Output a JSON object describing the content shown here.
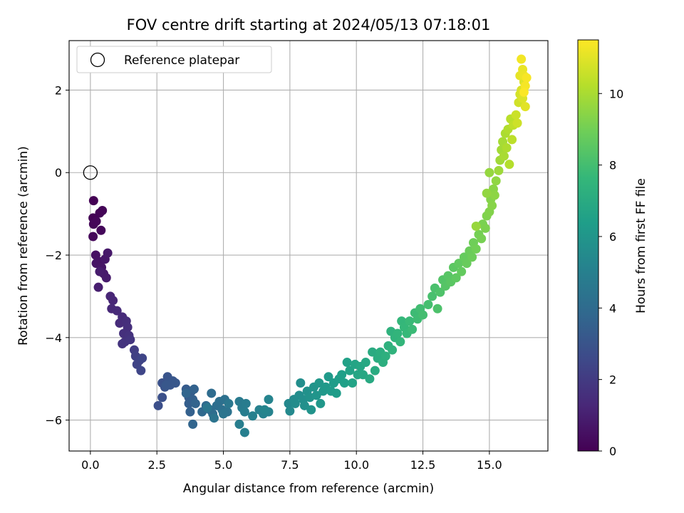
{
  "chart_data": {
    "type": "scatter",
    "title": "FOV centre drift starting at 2024/05/13 07:18:01",
    "xlabel": "Angular distance from reference (arcmin)",
    "ylabel": "Rotation from reference (arcmin)",
    "xlim": [
      -0.8,
      17.2
    ],
    "ylim": [
      -6.75,
      3.2
    ],
    "xticks": [
      0.0,
      2.5,
      5.0,
      7.5,
      10.0,
      12.5,
      15.0
    ],
    "xtick_labels": [
      "0.0",
      "2.5",
      "5.0",
      "7.5",
      "10.0",
      "12.5",
      "15.0"
    ],
    "yticks": [
      -6,
      -4,
      -2,
      0,
      2
    ],
    "ytick_labels": [
      "−6",
      "−4",
      "−2",
      "0",
      "2"
    ],
    "grid": true,
    "legend": {
      "position": "upper-left",
      "entries": [
        "Reference platepar"
      ]
    },
    "reference_point": {
      "x": 0.0,
      "y": 0.0
    },
    "colorbar": {
      "label": "Hours from first FF file",
      "colormap": "viridis",
      "range": [
        0,
        11.5
      ],
      "ticks": [
        0,
        2,
        4,
        6,
        8,
        10
      ],
      "tick_labels": [
        "0",
        "2",
        "4",
        "6",
        "8",
        "10"
      ]
    },
    "colors": [
      "#440154",
      "#482878",
      "#3e4989",
      "#31688e",
      "#26828e",
      "#1f9e89",
      "#35b779",
      "#6ece58",
      "#b5de2b",
      "#fde725"
    ],
    "points": [
      [
        0.12,
        -0.68,
        0.0
      ],
      [
        0.1,
        -1.1,
        0.05
      ],
      [
        0.35,
        -0.98,
        0.1
      ],
      [
        0.45,
        -0.92,
        0.12
      ],
      [
        0.12,
        -1.25,
        0.15
      ],
      [
        0.22,
        -1.18,
        0.17
      ],
      [
        0.4,
        -1.4,
        0.2
      ],
      [
        0.1,
        -1.55,
        0.22
      ],
      [
        0.2,
        -2.0,
        0.5
      ],
      [
        0.3,
        -2.15,
        0.55
      ],
      [
        0.22,
        -2.2,
        0.6
      ],
      [
        0.42,
        -2.3,
        0.65
      ],
      [
        0.55,
        -2.1,
        0.7
      ],
      [
        0.65,
        -1.95,
        0.75
      ],
      [
        0.5,
        -2.45,
        0.8
      ],
      [
        0.6,
        -2.55,
        0.85
      ],
      [
        0.35,
        -2.4,
        0.9
      ],
      [
        0.3,
        -2.78,
        0.95
      ],
      [
        0.75,
        -3.0,
        1.2
      ],
      [
        0.85,
        -3.1,
        1.25
      ],
      [
        0.8,
        -3.3,
        1.3
      ],
      [
        1.0,
        -3.35,
        1.35
      ],
      [
        1.2,
        -3.5,
        1.4
      ],
      [
        1.1,
        -3.65,
        1.45
      ],
      [
        1.35,
        -3.6,
        1.5
      ],
      [
        1.4,
        -3.75,
        1.55
      ],
      [
        1.25,
        -3.9,
        1.6
      ],
      [
        1.45,
        -3.95,
        1.65
      ],
      [
        1.3,
        -4.1,
        1.7
      ],
      [
        1.2,
        -4.15,
        1.75
      ],
      [
        1.5,
        -4.05,
        1.8
      ],
      [
        1.65,
        -4.3,
        2.1
      ],
      [
        1.7,
        -4.45,
        2.2
      ],
      [
        1.85,
        -4.55,
        2.3
      ],
      [
        1.75,
        -4.65,
        2.35
      ],
      [
        1.95,
        -4.5,
        2.4
      ],
      [
        1.9,
        -4.8,
        2.45
      ],
      [
        2.55,
        -5.65,
        2.8
      ],
      [
        2.7,
        -5.45,
        2.85
      ],
      [
        2.7,
        -5.1,
        2.9
      ],
      [
        2.8,
        -5.2,
        2.95
      ],
      [
        2.9,
        -4.95,
        3.0
      ],
      [
        3.0,
        -5.15,
        3.05
      ],
      [
        3.1,
        -5.05,
        3.1
      ],
      [
        3.2,
        -5.1,
        3.12
      ],
      [
        2.85,
        -5.15,
        3.15
      ],
      [
        3.6,
        -5.25,
        3.3
      ],
      [
        3.7,
        -5.45,
        3.35
      ],
      [
        3.8,
        -5.3,
        3.4
      ],
      [
        3.7,
        -5.6,
        3.45
      ],
      [
        3.85,
        -5.5,
        3.5
      ],
      [
        3.75,
        -5.8,
        3.55
      ],
      [
        3.9,
        -5.25,
        3.6
      ],
      [
        3.95,
        -5.6,
        3.65
      ],
      [
        3.85,
        -6.1,
        3.7
      ],
      [
        3.6,
        -5.35,
        3.75
      ],
      [
        4.2,
        -5.8,
        3.9
      ],
      [
        4.35,
        -5.65,
        3.95
      ],
      [
        4.5,
        -5.75,
        4.0
      ],
      [
        4.55,
        -5.35,
        4.05
      ],
      [
        4.6,
        -5.85,
        4.1
      ],
      [
        4.75,
        -5.65,
        4.15
      ],
      [
        4.85,
        -5.55,
        4.2
      ],
      [
        4.95,
        -5.75,
        4.25
      ],
      [
        5.05,
        -5.5,
        4.3
      ],
      [
        5.15,
        -5.8,
        4.35
      ],
      [
        4.65,
        -5.95,
        4.4
      ],
      [
        5.0,
        -5.85,
        4.45
      ],
      [
        4.4,
        -5.7,
        4.5
      ],
      [
        5.2,
        -5.6,
        4.55
      ],
      [
        5.6,
        -5.55,
        4.7
      ],
      [
        5.7,
        -5.7,
        4.75
      ],
      [
        5.85,
        -5.6,
        4.8
      ],
      [
        5.8,
        -5.8,
        4.85
      ],
      [
        5.6,
        -6.1,
        4.9
      ],
      [
        5.8,
        -6.3,
        4.95
      ],
      [
        6.1,
        -5.9,
        5.0
      ],
      [
        6.35,
        -5.75,
        5.05
      ],
      [
        6.5,
        -5.85,
        5.1
      ],
      [
        6.7,
        -5.8,
        5.15
      ],
      [
        6.7,
        -5.5,
        5.2
      ],
      [
        6.55,
        -5.75,
        5.25
      ],
      [
        7.45,
        -5.6,
        5.4
      ],
      [
        7.5,
        -5.78,
        5.45
      ],
      [
        7.65,
        -5.5,
        5.5
      ],
      [
        7.7,
        -5.6,
        5.55
      ],
      [
        7.85,
        -5.4,
        5.6
      ],
      [
        7.9,
        -5.1,
        5.65
      ],
      [
        8.0,
        -5.5,
        5.7
      ],
      [
        8.05,
        -5.65,
        5.75
      ],
      [
        8.15,
        -5.3,
        5.8
      ],
      [
        8.25,
        -5.45,
        5.85
      ],
      [
        8.3,
        -5.75,
        5.9
      ],
      [
        8.4,
        -5.2,
        5.95
      ],
      [
        8.5,
        -5.4,
        6.0
      ],
      [
        8.6,
        -5.1,
        6.05
      ],
      [
        8.65,
        -5.6,
        6.08
      ],
      [
        8.75,
        -5.3,
        6.1
      ],
      [
        8.85,
        -5.2,
        6.15
      ],
      [
        8.95,
        -4.95,
        6.2
      ],
      [
        9.05,
        -5.3,
        6.25
      ],
      [
        9.15,
        -5.1,
        6.3
      ],
      [
        9.25,
        -5.35,
        6.35
      ],
      [
        9.35,
        -5.0,
        6.4
      ],
      [
        9.45,
        -4.9,
        6.45
      ],
      [
        9.55,
        -5.1,
        6.5
      ],
      [
        9.65,
        -4.6,
        6.55
      ],
      [
        9.75,
        -4.8,
        6.6
      ],
      [
        9.85,
        -5.1,
        6.65
      ],
      [
        9.95,
        -4.65,
        6.7
      ],
      [
        10.05,
        -4.9,
        6.75
      ],
      [
        10.15,
        -4.7,
        6.8
      ],
      [
        10.25,
        -4.9,
        6.85
      ],
      [
        10.35,
        -4.6,
        6.9
      ],
      [
        10.5,
        -5.0,
        6.95
      ],
      [
        10.6,
        -4.35,
        7.0
      ],
      [
        10.7,
        -4.8,
        7.05
      ],
      [
        10.8,
        -4.5,
        7.1
      ],
      [
        10.9,
        -4.35,
        7.15
      ],
      [
        11.0,
        -4.6,
        7.2
      ],
      [
        11.1,
        -4.45,
        7.25
      ],
      [
        11.2,
        -4.2,
        7.3
      ],
      [
        11.3,
        -3.85,
        7.35
      ],
      [
        11.35,
        -4.3,
        7.4
      ],
      [
        11.45,
        -4.0,
        7.45
      ],
      [
        11.55,
        -3.9,
        7.5
      ],
      [
        11.65,
        -4.1,
        7.55
      ],
      [
        11.7,
        -3.6,
        7.6
      ],
      [
        11.8,
        -3.75,
        7.65
      ],
      [
        11.9,
        -3.9,
        7.7
      ],
      [
        12.0,
        -3.6,
        7.75
      ],
      [
        12.1,
        -3.8,
        7.8
      ],
      [
        12.2,
        -3.4,
        7.85
      ],
      [
        12.3,
        -3.55,
        7.9
      ],
      [
        12.4,
        -3.3,
        7.95
      ],
      [
        12.5,
        -3.45,
        8.0
      ],
      [
        12.7,
        -3.2,
        8.05
      ],
      [
        12.85,
        -3.0,
        8.1
      ],
      [
        12.95,
        -2.8,
        8.15
      ],
      [
        13.05,
        -3.3,
        8.2
      ],
      [
        13.15,
        -2.9,
        8.25
      ],
      [
        13.25,
        -2.6,
        8.35
      ],
      [
        13.35,
        -2.75,
        8.4
      ],
      [
        13.45,
        -2.5,
        8.45
      ],
      [
        13.55,
        -2.65,
        8.5
      ],
      [
        13.65,
        -2.3,
        8.55
      ],
      [
        13.75,
        -2.55,
        8.6
      ],
      [
        13.85,
        -2.2,
        8.65
      ],
      [
        13.95,
        -2.4,
        8.7
      ],
      [
        14.05,
        -2.05,
        8.75
      ],
      [
        14.15,
        -2.2,
        8.8
      ],
      [
        14.25,
        -1.9,
        8.85
      ],
      [
        14.35,
        -2.05,
        8.9
      ],
      [
        14.4,
        -1.7,
        8.95
      ],
      [
        14.5,
        -1.85,
        9.0
      ],
      [
        14.6,
        -1.5,
        9.05
      ],
      [
        14.7,
        -1.6,
        9.1
      ],
      [
        14.75,
        -1.25,
        9.15
      ],
      [
        14.85,
        -1.35,
        9.2
      ],
      [
        14.9,
        -1.05,
        9.25
      ],
      [
        15.0,
        -0.95,
        9.3
      ],
      [
        15.05,
        -0.65,
        9.35
      ],
      [
        15.1,
        -0.8,
        9.4
      ],
      [
        15.15,
        -0.4,
        9.45
      ],
      [
        15.2,
        -0.55,
        9.5
      ],
      [
        15.25,
        -0.2,
        9.55
      ],
      [
        14.9,
        -0.5,
        9.6
      ],
      [
        15.0,
        -0.0,
        9.65
      ],
      [
        14.5,
        -1.3,
        9.7
      ],
      [
        15.35,
        0.05,
        9.8
      ],
      [
        15.4,
        0.3,
        9.85
      ],
      [
        15.45,
        0.55,
        9.9
      ],
      [
        15.5,
        0.75,
        9.95
      ],
      [
        15.55,
        0.4,
        10.0
      ],
      [
        15.6,
        0.95,
        10.05
      ],
      [
        15.65,
        0.6,
        10.1
      ],
      [
        15.7,
        1.05,
        10.15
      ],
      [
        15.75,
        0.2,
        10.2
      ],
      [
        15.8,
        1.3,
        10.3
      ],
      [
        15.85,
        0.8,
        10.35
      ],
      [
        15.9,
        1.15,
        10.4
      ],
      [
        16.0,
        1.4,
        10.6
      ],
      [
        16.05,
        1.2,
        10.65
      ],
      [
        16.1,
        1.7,
        10.7
      ],
      [
        16.15,
        1.9,
        10.75
      ],
      [
        16.2,
        2.0,
        10.85
      ],
      [
        16.25,
        1.8,
        10.9
      ],
      [
        16.3,
        2.2,
        10.95
      ],
      [
        16.35,
        1.6,
        11.0
      ],
      [
        16.15,
        2.35,
        11.1
      ],
      [
        16.25,
        2.5,
        11.15
      ],
      [
        16.3,
        2.35,
        11.2
      ],
      [
        16.2,
        2.75,
        11.3
      ],
      [
        16.35,
        2.1,
        11.35
      ],
      [
        16.4,
        2.3,
        11.4
      ],
      [
        16.3,
        1.95,
        11.45
      ]
    ]
  }
}
